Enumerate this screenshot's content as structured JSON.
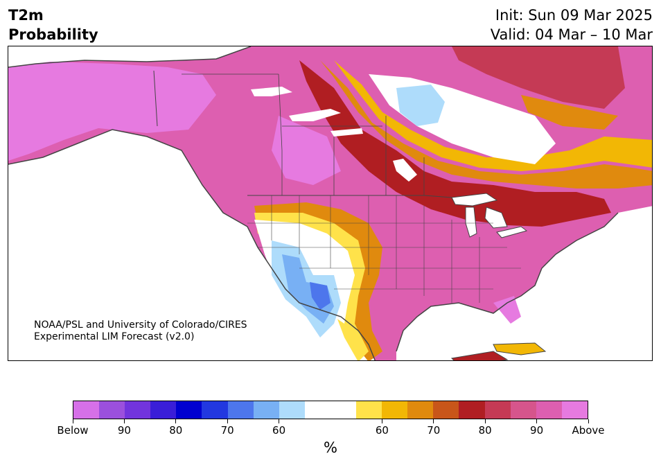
{
  "header": {
    "title_line1": "T2m",
    "title_line2": "Probability",
    "init": "Init: Sun 09 Mar 2025",
    "valid": "Valid: 04 Mar – 10 Mar"
  },
  "credit": {
    "line1": "NOAA/PSL and University of Colorado/CIRES",
    "line2": "Experimental LIM Forecast (v2.0)"
  },
  "colorbar": {
    "colors": [
      "#d670e8",
      "#9b50dd",
      "#7234dd",
      "#3a1ed8",
      "#0000d0",
      "#2238e0",
      "#4d76ec",
      "#78b0f4",
      "#aedcfb",
      "#ffffff",
      "#ffffff",
      "#ffe24a",
      "#f2b705",
      "#e08a0e",
      "#c8561a",
      "#b01e22",
      "#c53a55",
      "#d6558c",
      "#dd5fb0",
      "#e67ae0"
    ],
    "labels": [
      "Below",
      "90",
      "80",
      "70",
      "60",
      "60",
      "70",
      "80",
      "90",
      "Above"
    ],
    "unit": "%"
  }
}
